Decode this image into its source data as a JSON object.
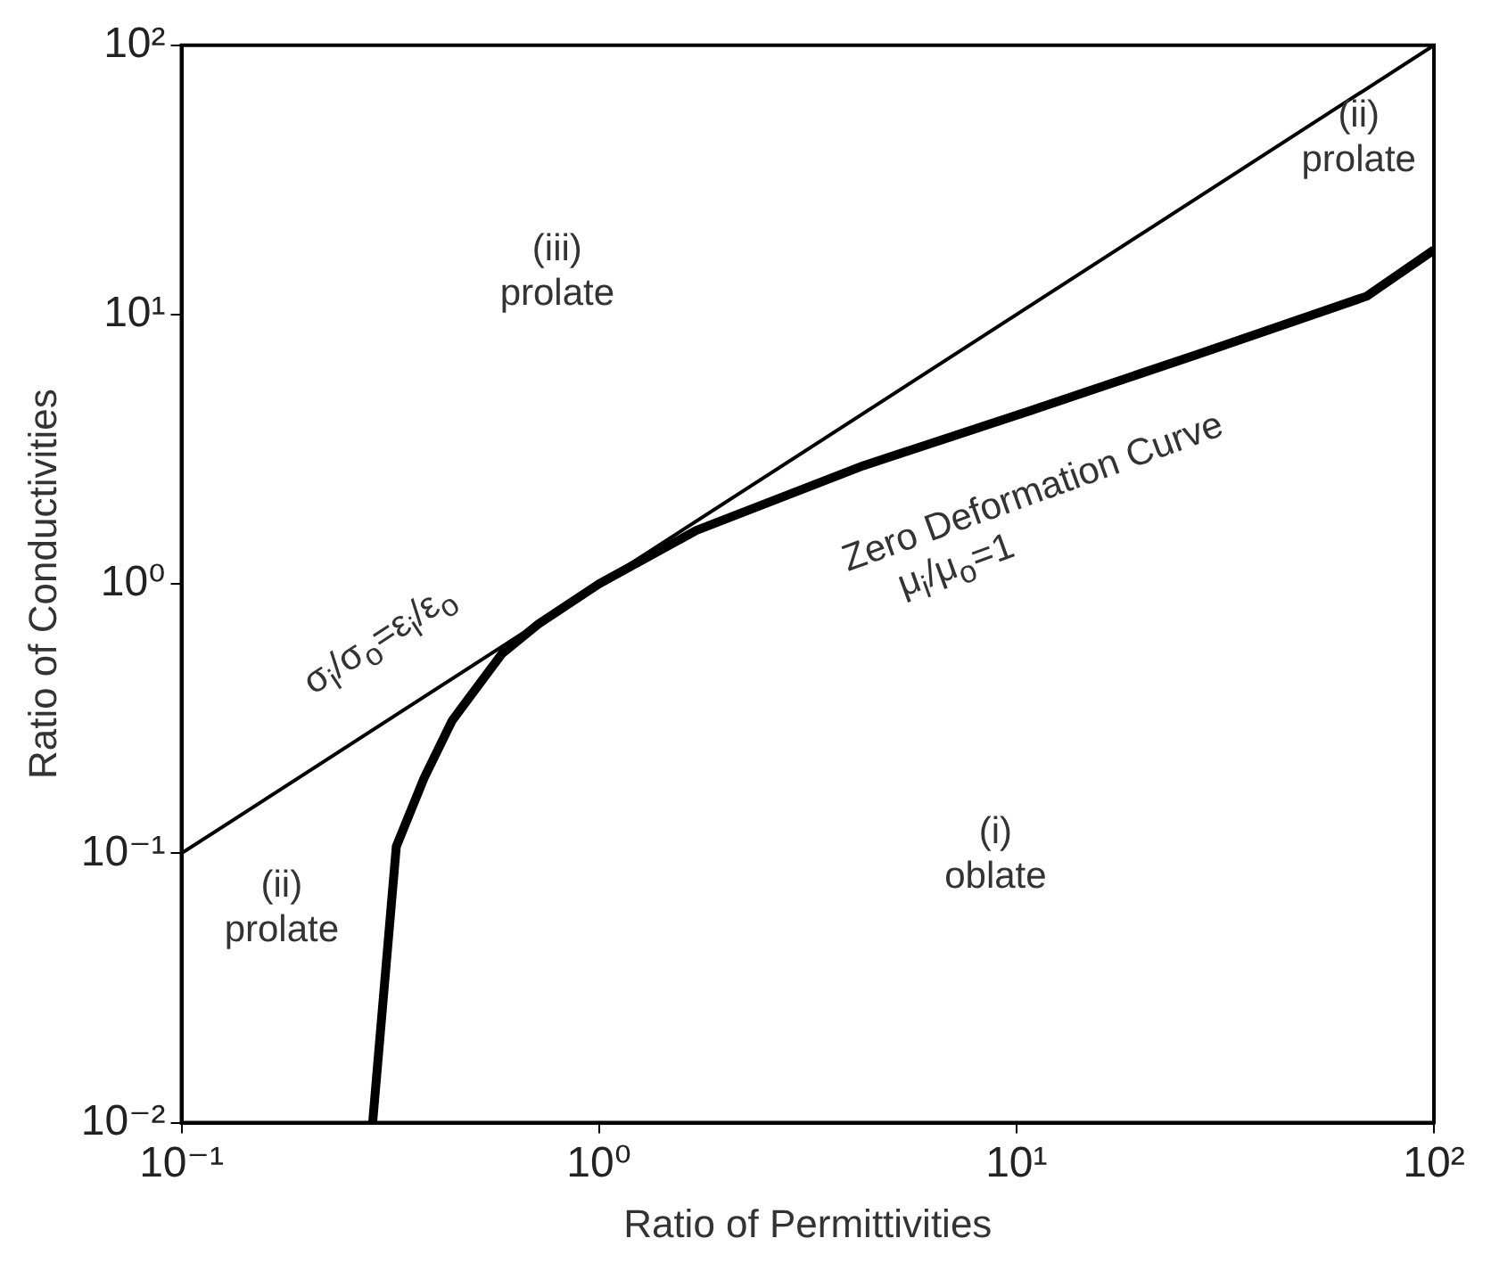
{
  "chart_data": {
    "type": "line",
    "xlabel": "Ratio of Permittivities",
    "ylabel": "Ratio of Conductivities",
    "log": "xy",
    "grid": false,
    "legend": false,
    "marker": "none",
    "line_style": "solid",
    "xlim": [
      0.1,
      100
    ],
    "ylim": [
      0.01,
      100
    ],
    "xticks": [
      {
        "value": 0.1,
        "label": "10⁻¹"
      },
      {
        "value": 1,
        "label": "10⁰"
      },
      {
        "value": 10,
        "label": "10¹"
      },
      {
        "value": 100,
        "label": "10²"
      }
    ],
    "yticks": [
      {
        "value": 0.01,
        "label": "10⁻²"
      },
      {
        "value": 0.1,
        "label": "10⁻¹"
      },
      {
        "value": 1,
        "label": "10⁰"
      },
      {
        "value": 10,
        "label": "10¹"
      },
      {
        "value": 100,
        "label": "10²"
      }
    ],
    "series": [
      {
        "color": "#000000",
        "x": [
          0.287,
          0.327,
          0.381,
          0.445,
          0.585,
          0.716,
          1.0,
          1.71,
          4.3,
          10.8,
          27,
          69,
          100
        ],
        "values": [
          0.01,
          0.106,
          0.19,
          0.311,
          0.55,
          0.71,
          1.0,
          1.58,
          2.75,
          4.4,
          7.1,
          11.7,
          17.4
        ]
      },
      {
        "color": "#000000",
        "x": [
          0.1,
          100
        ],
        "values": [
          0.1,
          100
        ]
      }
    ],
    "annotations": [
      "(iii)\nprolate",
      "(ii)\nprolate",
      "σ$_{i}$/σ$_{o}$=ε$_{i}$/ε$_{o}$",
      "Zero Deformation Curve",
      "μ$_{i}$/μ$_{o}$=1",
      "(i)\noblate",
      "(ii)\nprolate"
    ]
  }
}
